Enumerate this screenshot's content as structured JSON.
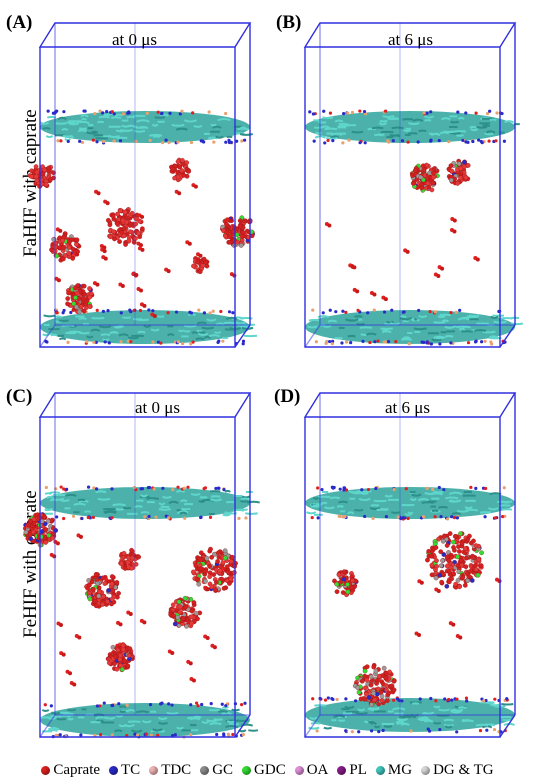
{
  "panels": {
    "A": {
      "label": "(A)",
      "time": "at 0 μs"
    },
    "B": {
      "label": "(B)",
      "time": "at 6 μs"
    },
    "C": {
      "label": "(C)",
      "time": "at 0 μs"
    },
    "D": {
      "label": "(D)",
      "time": "at 6 μs"
    }
  },
  "row_labels": {
    "top": "FaHIF with caprate",
    "bottom": "FeHIF with caprate"
  },
  "legend": [
    {
      "label": "Caprate",
      "color": "#e02020",
      "icon": "red-sphere-icon"
    },
    {
      "label": "TC",
      "color": "#2a2ac8",
      "icon": "blue-sphere-icon"
    },
    {
      "label": "TDC",
      "color": "#f0b4b4",
      "icon": "pink-sphere-icon"
    },
    {
      "label": "GC",
      "color": "#8c8c8c",
      "icon": "gray-sphere-icon"
    },
    {
      "label": "GDC",
      "color": "#33dd33",
      "icon": "green-sphere-icon"
    },
    {
      "label": "OA",
      "color": "#e090d8",
      "icon": "orchid-sphere-icon"
    },
    {
      "label": "PL",
      "color": "#8a1c8a",
      "icon": "purple-sphere-icon"
    },
    {
      "label": "MG",
      "color": "#40c8c0",
      "icon": "cyan-sphere-icon"
    },
    {
      "label": "DG & TG",
      "color": "#d8d8d8",
      "icon": "white-sphere-icon"
    }
  ],
  "colors": {
    "box": "#3030e0",
    "membrane": "#40b4ac",
    "caprate": "#e02020",
    "background": "#ffffff"
  }
}
